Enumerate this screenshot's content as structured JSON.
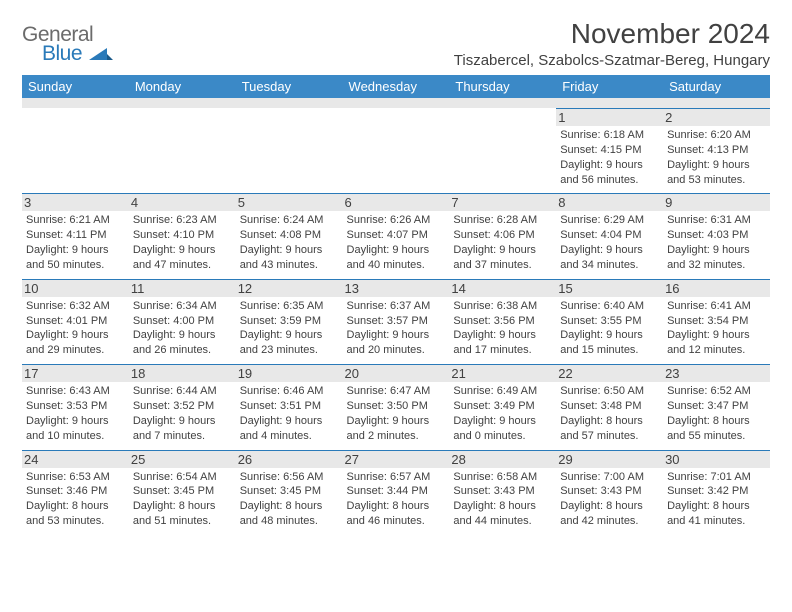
{
  "logo": {
    "line1": "General",
    "line2": "Blue"
  },
  "title": "November 2024",
  "location": "Tiszabercel, Szabolcs-Szatmar-Bereg, Hungary",
  "colors": {
    "header_bg": "#3b89c7",
    "accent": "#2a7ab9",
    "text": "#414141",
    "row_alt": "#e8e8e8",
    "background": "#ffffff"
  },
  "days_of_week": [
    "Sunday",
    "Monday",
    "Tuesday",
    "Wednesday",
    "Thursday",
    "Friday",
    "Saturday"
  ],
  "weeks": [
    [
      null,
      null,
      null,
      null,
      null,
      {
        "n": "1",
        "sr": "6:18 AM",
        "ss": "4:15 PM",
        "dl1": "Daylight: 9 hours",
        "dl2": "and 56 minutes."
      },
      {
        "n": "2",
        "sr": "6:20 AM",
        "ss": "4:13 PM",
        "dl1": "Daylight: 9 hours",
        "dl2": "and 53 minutes."
      }
    ],
    [
      {
        "n": "3",
        "sr": "6:21 AM",
        "ss": "4:11 PM",
        "dl1": "Daylight: 9 hours",
        "dl2": "and 50 minutes."
      },
      {
        "n": "4",
        "sr": "6:23 AM",
        "ss": "4:10 PM",
        "dl1": "Daylight: 9 hours",
        "dl2": "and 47 minutes."
      },
      {
        "n": "5",
        "sr": "6:24 AM",
        "ss": "4:08 PM",
        "dl1": "Daylight: 9 hours",
        "dl2": "and 43 minutes."
      },
      {
        "n": "6",
        "sr": "6:26 AM",
        "ss": "4:07 PM",
        "dl1": "Daylight: 9 hours",
        "dl2": "and 40 minutes."
      },
      {
        "n": "7",
        "sr": "6:28 AM",
        "ss": "4:06 PM",
        "dl1": "Daylight: 9 hours",
        "dl2": "and 37 minutes."
      },
      {
        "n": "8",
        "sr": "6:29 AM",
        "ss": "4:04 PM",
        "dl1": "Daylight: 9 hours",
        "dl2": "and 34 minutes."
      },
      {
        "n": "9",
        "sr": "6:31 AM",
        "ss": "4:03 PM",
        "dl1": "Daylight: 9 hours",
        "dl2": "and 32 minutes."
      }
    ],
    [
      {
        "n": "10",
        "sr": "6:32 AM",
        "ss": "4:01 PM",
        "dl1": "Daylight: 9 hours",
        "dl2": "and 29 minutes."
      },
      {
        "n": "11",
        "sr": "6:34 AM",
        "ss": "4:00 PM",
        "dl1": "Daylight: 9 hours",
        "dl2": "and 26 minutes."
      },
      {
        "n": "12",
        "sr": "6:35 AM",
        "ss": "3:59 PM",
        "dl1": "Daylight: 9 hours",
        "dl2": "and 23 minutes."
      },
      {
        "n": "13",
        "sr": "6:37 AM",
        "ss": "3:57 PM",
        "dl1": "Daylight: 9 hours",
        "dl2": "and 20 minutes."
      },
      {
        "n": "14",
        "sr": "6:38 AM",
        "ss": "3:56 PM",
        "dl1": "Daylight: 9 hours",
        "dl2": "and 17 minutes."
      },
      {
        "n": "15",
        "sr": "6:40 AM",
        "ss": "3:55 PM",
        "dl1": "Daylight: 9 hours",
        "dl2": "and 15 minutes."
      },
      {
        "n": "16",
        "sr": "6:41 AM",
        "ss": "3:54 PM",
        "dl1": "Daylight: 9 hours",
        "dl2": "and 12 minutes."
      }
    ],
    [
      {
        "n": "17",
        "sr": "6:43 AM",
        "ss": "3:53 PM",
        "dl1": "Daylight: 9 hours",
        "dl2": "and 10 minutes."
      },
      {
        "n": "18",
        "sr": "6:44 AM",
        "ss": "3:52 PM",
        "dl1": "Daylight: 9 hours",
        "dl2": "and 7 minutes."
      },
      {
        "n": "19",
        "sr": "6:46 AM",
        "ss": "3:51 PM",
        "dl1": "Daylight: 9 hours",
        "dl2": "and 4 minutes."
      },
      {
        "n": "20",
        "sr": "6:47 AM",
        "ss": "3:50 PM",
        "dl1": "Daylight: 9 hours",
        "dl2": "and 2 minutes."
      },
      {
        "n": "21",
        "sr": "6:49 AM",
        "ss": "3:49 PM",
        "dl1": "Daylight: 9 hours",
        "dl2": "and 0 minutes."
      },
      {
        "n": "22",
        "sr": "6:50 AM",
        "ss": "3:48 PM",
        "dl1": "Daylight: 8 hours",
        "dl2": "and 57 minutes."
      },
      {
        "n": "23",
        "sr": "6:52 AM",
        "ss": "3:47 PM",
        "dl1": "Daylight: 8 hours",
        "dl2": "and 55 minutes."
      }
    ],
    [
      {
        "n": "24",
        "sr": "6:53 AM",
        "ss": "3:46 PM",
        "dl1": "Daylight: 8 hours",
        "dl2": "and 53 minutes."
      },
      {
        "n": "25",
        "sr": "6:54 AM",
        "ss": "3:45 PM",
        "dl1": "Daylight: 8 hours",
        "dl2": "and 51 minutes."
      },
      {
        "n": "26",
        "sr": "6:56 AM",
        "ss": "3:45 PM",
        "dl1": "Daylight: 8 hours",
        "dl2": "and 48 minutes."
      },
      {
        "n": "27",
        "sr": "6:57 AM",
        "ss": "3:44 PM",
        "dl1": "Daylight: 8 hours",
        "dl2": "and 46 minutes."
      },
      {
        "n": "28",
        "sr": "6:58 AM",
        "ss": "3:43 PM",
        "dl1": "Daylight: 8 hours",
        "dl2": "and 44 minutes."
      },
      {
        "n": "29",
        "sr": "7:00 AM",
        "ss": "3:43 PM",
        "dl1": "Daylight: 8 hours",
        "dl2": "and 42 minutes."
      },
      {
        "n": "30",
        "sr": "7:01 AM",
        "ss": "3:42 PM",
        "dl1": "Daylight: 8 hours",
        "dl2": "and 41 minutes."
      }
    ]
  ],
  "labels": {
    "sunrise": "Sunrise:",
    "sunset": "Sunset:"
  }
}
